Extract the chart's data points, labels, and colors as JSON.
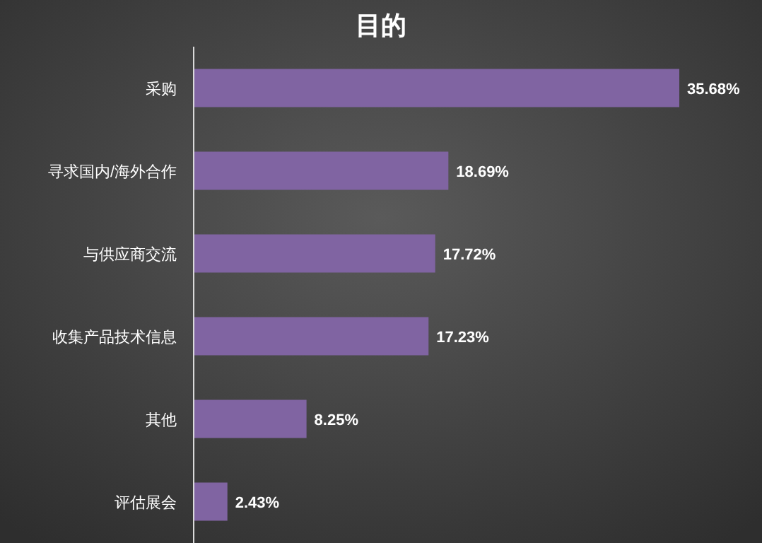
{
  "chart_data": {
    "type": "bar",
    "orientation": "horizontal",
    "title": "目的",
    "categories": [
      "采购",
      "寻求国内/海外合作",
      "与供应商交流",
      "收集产品技术信息",
      "其他",
      "评估展会"
    ],
    "values": [
      35.68,
      18.69,
      17.72,
      17.23,
      8.25,
      2.43
    ],
    "value_labels": [
      "35.68%",
      "18.69%",
      "17.72%",
      "17.23%",
      "8.25%",
      "2.43%"
    ],
    "color": "#8064a2"
  }
}
